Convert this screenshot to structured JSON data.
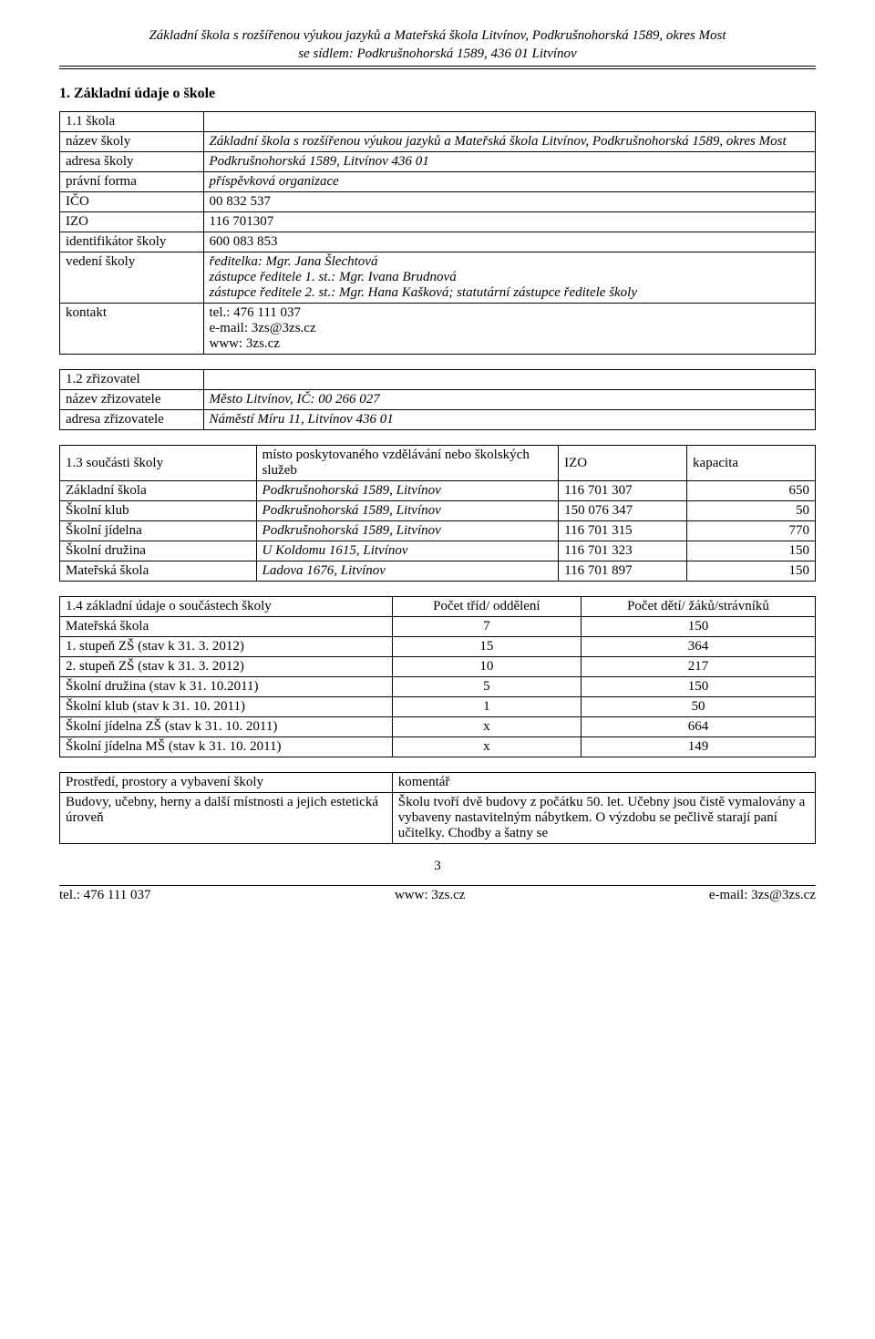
{
  "header": {
    "line1": "Základní škola s rozšířenou výukou jazyků a Mateřská škola Litvínov, Podkrušnohorská 1589, okres Most",
    "line2": "se sídlem: Podkrušnohorská 1589, 436 01 Litvínov"
  },
  "section1_title": "1. Základní údaje o škole",
  "t1": {
    "caption": "1.1 škola",
    "rows": [
      {
        "label": "název školy",
        "value": "Základní škola s rozšířenou výukou jazyků a Mateřská škola Litvínov, Podkrušnohorská 1589, okres Most",
        "italic": true
      },
      {
        "label": "adresa školy",
        "value": "Podkrušnohorská 1589, Litvínov 436 01",
        "italic": true
      },
      {
        "label": "právní forma",
        "value": "příspěvková organizace",
        "italic": true
      },
      {
        "label": "IČO",
        "value": "00 832 537"
      },
      {
        "label": "IZO",
        "value": "116 701307"
      },
      {
        "label": "identifikátor školy",
        "value": "600 083 853"
      },
      {
        "label": "vedení školy",
        "value": "ředitelka: Mgr. Jana Šlechtová\nzástupce ředitele 1. st.: Mgr. Ivana Brudnová\nzástupce ředitele 2. st.: Mgr. Hana Kašková; statutární zástupce ředitele školy",
        "italic": true
      },
      {
        "label": "kontakt",
        "value": "tel.: 476 111 037\ne-mail: 3zs@3zs.cz\nwww: 3zs.cz"
      }
    ]
  },
  "t2": {
    "caption": "1.2 zřizovatel",
    "rows": [
      {
        "label": "název zřizovatele",
        "value": "Město Litvínov, IČ: 00 266 027",
        "italic": true
      },
      {
        "label": "adresa zřizovatele",
        "value": "Náměstí Míru 11, Litvínov 436 01",
        "italic": true
      }
    ]
  },
  "t3": {
    "corner": "1.3 součásti školy",
    "header2": "místo poskytovaného vzdělávání nebo školských služeb",
    "header3": "IZO",
    "header4": "kapacita",
    "rows": [
      {
        "c1": "Základní škola",
        "c2": "Podkrušnohorská 1589, Litvínov",
        "c3": "116 701 307",
        "c4": "650",
        "italic2": true
      },
      {
        "c1": "Školní klub",
        "c2": "Podkrušnohorská 1589, Litvínov",
        "c3": "150 076 347",
        "c4": "50",
        "italic2": true
      },
      {
        "c1": "Školní jídelna",
        "c2": "Podkrušnohorská 1589, Litvínov",
        "c3": "116 701 315",
        "c4": "770",
        "italic2": true
      },
      {
        "c1": "Školní družina",
        "c2": "U Koldomu 1615, Litvínov",
        "c3": "116 701 323",
        "c4": "150",
        "italic2": true
      },
      {
        "c1": "Mateřská škola",
        "c2": "Ladova 1676, Litvínov",
        "c3": "116 701 897",
        "c4": "150",
        "italic2": true
      }
    ]
  },
  "t4": {
    "h1": "1.4 základní údaje o součástech školy",
    "h2": "Počet tříd/ oddělení",
    "h3": "Počet dětí/ žáků/strávníků",
    "rows": [
      {
        "c1": "Mateřská škola",
        "c2": "7",
        "c3": "150"
      },
      {
        "c1": "1. stupeň ZŠ (stav k 31. 3. 2012)",
        "c2": "15",
        "c3": "364"
      },
      {
        "c1": "2. stupeň ZŠ (stav k 31. 3. 2012)",
        "c2": "10",
        "c3": "217"
      },
      {
        "c1": "Školní družina (stav k 31. 10.2011)",
        "c2": "5",
        "c3": "150"
      },
      {
        "c1": "Školní klub (stav k 31. 10. 2011)",
        "c2": "1",
        "c3": "50"
      },
      {
        "c1": "Školní jídelna ZŠ (stav k 31. 10. 2011)",
        "c2": "x",
        "c3": "664"
      },
      {
        "c1": "Školní jídelna MŠ (stav k 31. 10. 2011)",
        "c2": "x",
        "c3": "149"
      }
    ]
  },
  "t5": {
    "h1": "Prostředí, prostory a vybavení školy",
    "h2": "komentář",
    "r1_label": "Budovy, učebny, herny a další místnosti a jejich estetická úroveň",
    "r1_value": "Školu tvoří dvě budovy z počátku 50. let. Učebny jsou čistě vymalovány a vybaveny nastavitelným nábytkem. O výzdobu se pečlivě starají paní učitelky. Chodby a šatny se"
  },
  "footer": {
    "left": "tel.: 476 111 037",
    "center": "www: 3zs.cz",
    "right": "e-mail: 3zs@3zs.cz",
    "page": "3"
  },
  "colors": {
    "text": "#000000",
    "background": "#ffffff",
    "border": "#000000"
  },
  "layout": {
    "t1_col_widths": [
      "19%",
      "81%"
    ],
    "t3_col_widths": [
      "26%",
      "40%",
      "17%",
      "17%"
    ],
    "t4_col_widths": [
      "44%",
      "25%",
      "31%"
    ],
    "t5_col_widths": [
      "44%",
      "56%"
    ]
  }
}
